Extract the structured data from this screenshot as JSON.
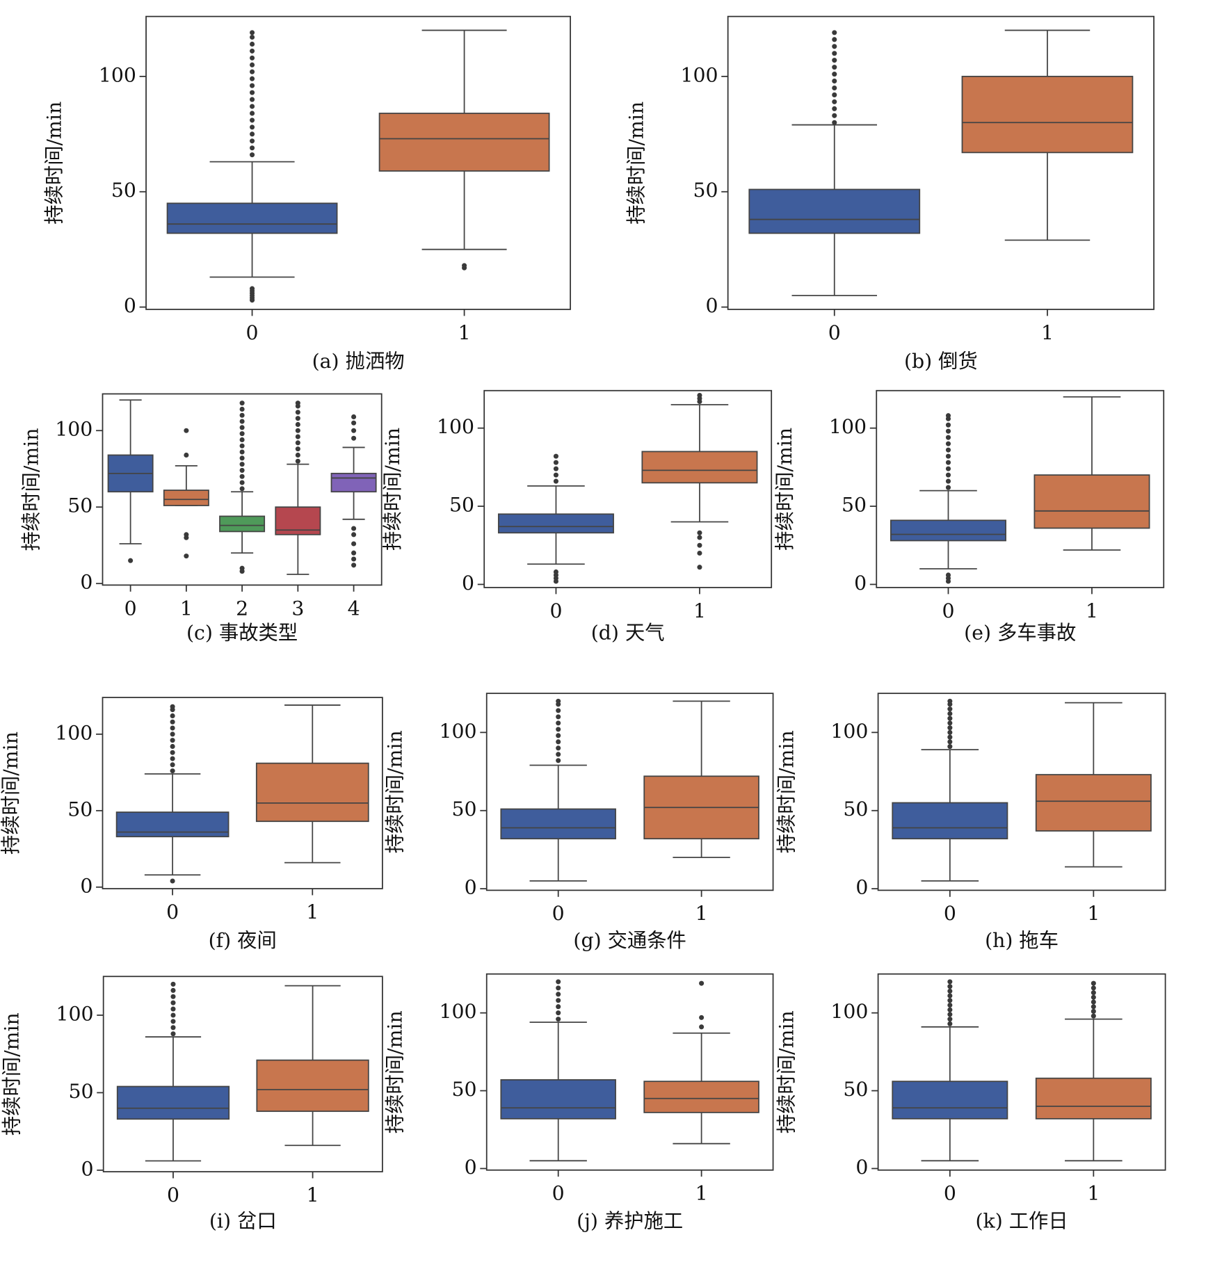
{
  "chart_data": [
    {
      "type": "box",
      "caption": "(a) 抛洒物",
      "y_label": "持续时间/min",
      "categories": [
        "0",
        "1"
      ],
      "ylim": [
        -1,
        126
      ],
      "yticks": [
        0,
        50,
        100
      ],
      "boxes": [
        {
          "color": "#3f5d9c",
          "whislo": 13,
          "q1": 32,
          "med": 36,
          "q3": 45,
          "whishi": 63,
          "fliers": [
            3,
            4,
            5,
            6,
            7,
            8,
            66,
            69,
            72,
            75,
            78,
            81,
            84,
            87,
            90,
            93,
            96,
            99,
            102,
            105,
            108,
            111,
            114,
            117,
            119
          ]
        },
        {
          "color": "#c8764e",
          "whislo": 25,
          "q1": 59,
          "med": 73,
          "q3": 84,
          "whishi": 120,
          "fliers": [
            17,
            18
          ]
        }
      ]
    },
    {
      "type": "box",
      "caption": "(b) 倒货",
      "y_label": "持续时间/min",
      "categories": [
        "0",
        "1"
      ],
      "ylim": [
        -1,
        126
      ],
      "yticks": [
        0,
        50,
        100
      ],
      "boxes": [
        {
          "color": "#3f5d9c",
          "whislo": 5,
          "q1": 32,
          "med": 38,
          "q3": 51,
          "whishi": 79,
          "fliers": [
            80,
            83,
            86,
            89,
            92,
            95,
            98,
            101,
            104,
            107,
            110,
            113,
            116,
            119
          ]
        },
        {
          "color": "#c8764e",
          "whislo": 29,
          "q1": 67,
          "med": 80,
          "q3": 100,
          "whishi": 120,
          "fliers": []
        }
      ]
    },
    {
      "type": "box",
      "caption": "(c) 事故类型",
      "y_label": "持续时间/min",
      "categories": [
        "0",
        "1",
        "2",
        "3",
        "4"
      ],
      "ylim": [
        -1,
        124
      ],
      "yticks": [
        0,
        50,
        100
      ],
      "boxes": [
        {
          "color": "#3f5d9c",
          "whislo": 26,
          "q1": 60,
          "med": 72,
          "q3": 84,
          "whishi": 120,
          "fliers": [
            15
          ]
        },
        {
          "color": "#c8764e",
          "whislo": 51,
          "q1": 51,
          "med": 55,
          "q3": 61,
          "whishi": 77,
          "fliers": [
            18,
            30,
            32,
            84,
            100
          ]
        },
        {
          "color": "#4f9a5a",
          "whislo": 20,
          "q1": 34,
          "med": 38,
          "q3": 44,
          "whishi": 60,
          "fliers": [
            8,
            10,
            62,
            66,
            70,
            74,
            78,
            82,
            86,
            90,
            94,
            98,
            102,
            106,
            110,
            114,
            118
          ]
        },
        {
          "color": "#b5474f",
          "whislo": 6,
          "q1": 32,
          "med": 35,
          "q3": 50,
          "whishi": 78,
          "fliers": [
            80,
            84,
            88,
            92,
            96,
            100,
            104,
            108,
            112,
            116,
            118
          ]
        },
        {
          "color": "#8063b8",
          "whislo": 42,
          "q1": 60,
          "med": 69,
          "q3": 72,
          "whishi": 89,
          "fliers": [
            12,
            16,
            20,
            26,
            32,
            36,
            95,
            100,
            105,
            109
          ]
        }
      ]
    },
    {
      "type": "box",
      "caption": "(d) 天气",
      "y_label": "持续时间/min",
      "categories": [
        "0",
        "1"
      ],
      "ylim": [
        -2,
        124
      ],
      "yticks": [
        0,
        50,
        100
      ],
      "boxes": [
        {
          "color": "#3f5d9c",
          "whislo": 13,
          "q1": 33,
          "med": 37,
          "q3": 45,
          "whishi": 63,
          "fliers": [
            2,
            4,
            6,
            8,
            66,
            70,
            74,
            78,
            82
          ]
        },
        {
          "color": "#c8764e",
          "whislo": 40,
          "q1": 65,
          "med": 73,
          "q3": 85,
          "whishi": 115,
          "fliers": [
            11,
            20,
            25,
            30,
            33,
            117,
            119,
            121
          ]
        }
      ]
    },
    {
      "type": "box",
      "caption": "(e) 多车事故",
      "y_label": "持续时间/min",
      "categories": [
        "0",
        "1"
      ],
      "ylim": [
        -2,
        124
      ],
      "yticks": [
        0,
        50,
        100
      ],
      "boxes": [
        {
          "color": "#3f5d9c",
          "whislo": 10,
          "q1": 28,
          "med": 32,
          "q3": 41,
          "whishi": 60,
          "fliers": [
            2,
            4,
            6,
            62,
            66,
            70,
            74,
            78,
            82,
            86,
            90,
            94,
            98,
            102,
            106,
            108
          ]
        },
        {
          "color": "#c8764e",
          "whislo": 22,
          "q1": 36,
          "med": 47,
          "q3": 70,
          "whishi": 120,
          "fliers": []
        }
      ]
    },
    {
      "type": "box",
      "caption": "(f) 夜间",
      "y_label": "持续时间/min",
      "categories": [
        "0",
        "1"
      ],
      "ylim": [
        -1,
        124
      ],
      "yticks": [
        0,
        50,
        100
      ],
      "boxes": [
        {
          "color": "#3f5d9c",
          "whislo": 8,
          "q1": 33,
          "med": 36,
          "q3": 49,
          "whishi": 74,
          "fliers": [
            4,
            76,
            80,
            84,
            88,
            92,
            96,
            100,
            104,
            108,
            112,
            116,
            118
          ]
        },
        {
          "color": "#c8764e",
          "whislo": 16,
          "q1": 43,
          "med": 55,
          "q3": 81,
          "whishi": 119,
          "fliers": []
        }
      ]
    },
    {
      "type": "box",
      "caption": "(g) 交通条件",
      "y_label": "持续时间/min",
      "categories": [
        "0",
        "1"
      ],
      "ylim": [
        -1,
        125
      ],
      "yticks": [
        0,
        50,
        100
      ],
      "boxes": [
        {
          "color": "#3f5d9c",
          "whislo": 5,
          "q1": 32,
          "med": 39,
          "q3": 51,
          "whishi": 79,
          "fliers": [
            82,
            86,
            90,
            94,
            98,
            102,
            106,
            110,
            114,
            118,
            120
          ]
        },
        {
          "color": "#c8764e",
          "whislo": 20,
          "q1": 32,
          "med": 52,
          "q3": 72,
          "whishi": 120,
          "fliers": []
        }
      ]
    },
    {
      "type": "box",
      "caption": "(h) 拖车",
      "y_label": "持续时间/min",
      "categories": [
        "0",
        "1"
      ],
      "ylim": [
        -1,
        125
      ],
      "yticks": [
        0,
        50,
        100
      ],
      "boxes": [
        {
          "color": "#3f5d9c",
          "whislo": 5,
          "q1": 32,
          "med": 39,
          "q3": 55,
          "whishi": 89,
          "fliers": [
            91,
            94,
            97,
            100,
            103,
            106,
            109,
            112,
            115,
            118,
            120
          ]
        },
        {
          "color": "#c8764e",
          "whislo": 14,
          "q1": 37,
          "med": 56,
          "q3": 73,
          "whishi": 119,
          "fliers": []
        }
      ]
    },
    {
      "type": "box",
      "caption": "(i) 岔口",
      "y_label": "持续时间/min",
      "categories": [
        "0",
        "1"
      ],
      "ylim": [
        -1,
        125
      ],
      "yticks": [
        0,
        50,
        100
      ],
      "boxes": [
        {
          "color": "#3f5d9c",
          "whislo": 6,
          "q1": 33,
          "med": 40,
          "q3": 54,
          "whishi": 86,
          "fliers": [
            88,
            92,
            96,
            100,
            104,
            108,
            112,
            116,
            120
          ]
        },
        {
          "color": "#c8764e",
          "whislo": 16,
          "q1": 38,
          "med": 52,
          "q3": 71,
          "whishi": 119,
          "fliers": []
        }
      ]
    },
    {
      "type": "box",
      "caption": "(j) 养护施工",
      "y_label": "持续时间/min",
      "categories": [
        "0",
        "1"
      ],
      "ylim": [
        -1,
        125
      ],
      "yticks": [
        0,
        50,
        100
      ],
      "boxes": [
        {
          "color": "#3f5d9c",
          "whislo": 5,
          "q1": 32,
          "med": 39,
          "q3": 57,
          "whishi": 94,
          "fliers": [
            96,
            100,
            104,
            108,
            112,
            116,
            120
          ]
        },
        {
          "color": "#c8764e",
          "whislo": 16,
          "q1": 36,
          "med": 45,
          "q3": 56,
          "whishi": 87,
          "fliers": [
            91,
            97,
            119
          ]
        }
      ]
    },
    {
      "type": "box",
      "caption": "(k) 工作日",
      "y_label": "持续时间/min",
      "categories": [
        "0",
        "1"
      ],
      "ylim": [
        -1,
        125
      ],
      "yticks": [
        0,
        50,
        100
      ],
      "boxes": [
        {
          "color": "#3f5d9c",
          "whislo": 5,
          "q1": 32,
          "med": 39,
          "q3": 56,
          "whishi": 91,
          "fliers": [
            93,
            96,
            99,
            102,
            105,
            108,
            111,
            114,
            117,
            120
          ]
        },
        {
          "color": "#c8764e",
          "whislo": 5,
          "q1": 32,
          "med": 40,
          "q3": 58,
          "whishi": 96,
          "fliers": [
            98,
            101,
            104,
            107,
            110,
            113,
            116,
            119
          ]
        }
      ]
    }
  ]
}
